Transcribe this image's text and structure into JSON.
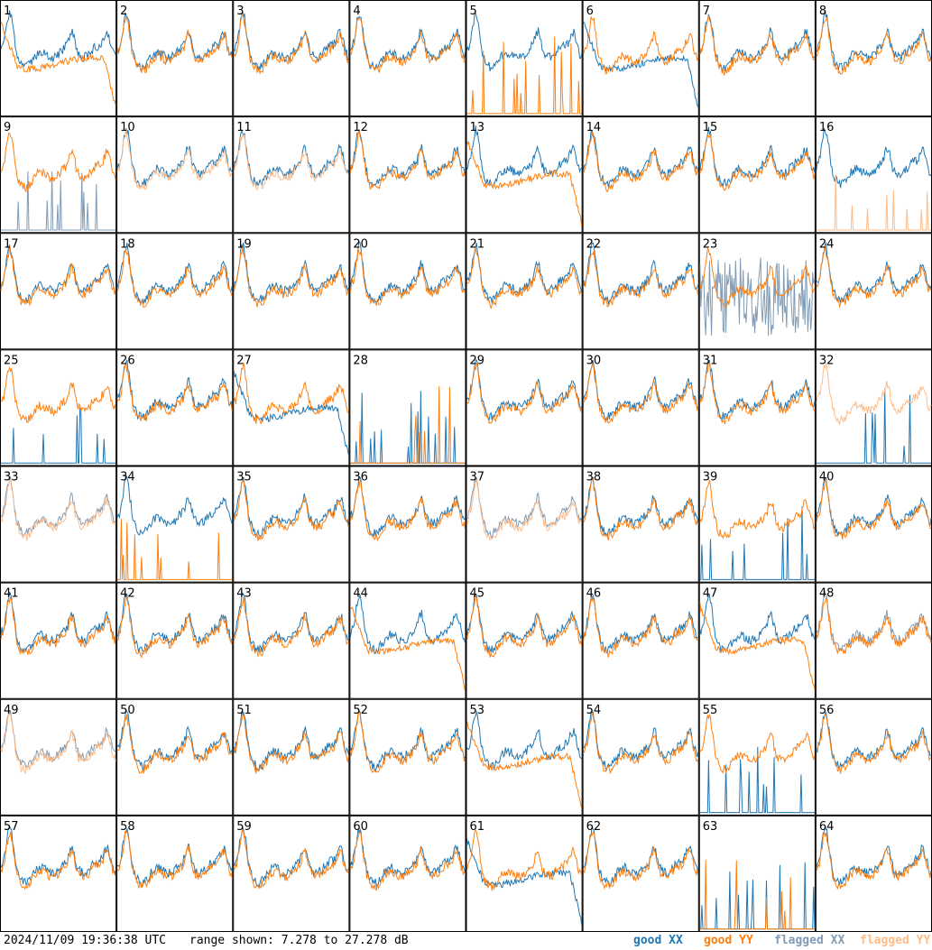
{
  "chart_data": {
    "type": "line",
    "description_panels": "64 antenna autocorrelation spectra in an 8x8 grid",
    "grid": {
      "rows": 8,
      "cols": 8
    },
    "panel_labels": [
      "1",
      "2",
      "3",
      "4",
      "5",
      "6",
      "7",
      "8",
      "9",
      "10",
      "11",
      "12",
      "13",
      "14",
      "15",
      "16",
      "17",
      "18",
      "19",
      "20",
      "21",
      "22",
      "23",
      "24",
      "25",
      "26",
      "27",
      "28",
      "29",
      "30",
      "31",
      "32",
      "33",
      "34",
      "35",
      "36",
      "37",
      "38",
      "39",
      "40",
      "41",
      "42",
      "43",
      "44",
      "45",
      "46",
      "47",
      "48",
      "49",
      "50",
      "51",
      "52",
      "53",
      "54",
      "55",
      "56",
      "57",
      "58",
      "59",
      "60",
      "61",
      "62",
      "63",
      "64"
    ],
    "ylim": [
      7.278,
      27.278
    ],
    "series": [
      {
        "name": "good XX",
        "color": "#1f77b4"
      },
      {
        "name": "good YY",
        "color": "#ff7f0e"
      },
      {
        "name": "flagged XX",
        "color": "#7f9bb5"
      },
      {
        "name": "flagged YY",
        "color": "#ffbb88"
      }
    ],
    "panel_modes": {
      "1": [
        "normal",
        "lowsag"
      ],
      "5": [
        "normal",
        "spikes"
      ],
      "6": [
        "lowsag",
        "normal"
      ],
      "9": [
        "spikesflag",
        "normal"
      ],
      "10": [
        "normal",
        "flagged"
      ],
      "11": [
        "normal",
        "flagged"
      ],
      "13": [
        "normal",
        "lowsag"
      ],
      "16": [
        "normal",
        "spikesflag"
      ],
      "23": [
        "noisyflag",
        "normal"
      ],
      "25": [
        "spikes",
        "normal"
      ],
      "27": [
        "lowsag",
        "normal"
      ],
      "28": [
        "spikes",
        "spikes"
      ],
      "32": [
        "spikes",
        "flagged"
      ],
      "33": [
        "flagged",
        "flagged"
      ],
      "34": [
        "normal",
        "spikes"
      ],
      "37": [
        "flagged",
        "flagged"
      ],
      "39": [
        "spikes",
        "normal"
      ],
      "44": [
        "normal",
        "lowsag"
      ],
      "47": [
        "normal",
        "lowsag"
      ],
      "48": [
        "flagged",
        "normal"
      ],
      "49": [
        "flagged",
        "flagged"
      ],
      "53": [
        "normal",
        "lowsag"
      ],
      "55": [
        "spikes",
        "normal"
      ],
      "61": [
        "lowsag",
        "normal"
      ],
      "63": [
        "spikes",
        "spikes"
      ]
    }
  },
  "footer": {
    "timestamp": "2024/11/09 19:36:38 UTC",
    "range_text": "range shown: 7.278 to 27.278 dB",
    "legend": {
      "good_xx": "good XX",
      "good_yy": "good YY",
      "flagged_xx": "flagged XX",
      "flagged_yy": "flagged YY"
    }
  },
  "colors": {
    "good_xx": "#1f77b4",
    "good_yy": "#ff7f0e",
    "flagged_xx": "#7f9bb5",
    "flagged_yy": "#ffbb88"
  }
}
